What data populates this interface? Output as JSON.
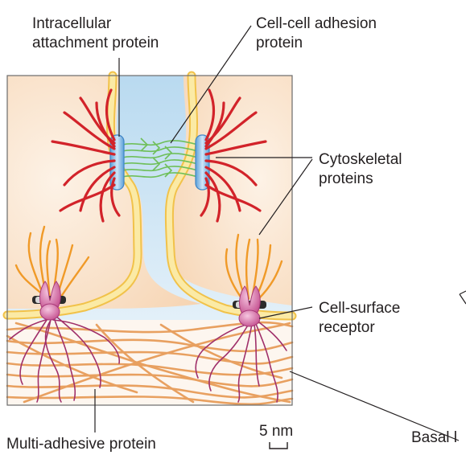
{
  "labels": {
    "intracellular_line1": "Intracellular",
    "intracellular_line2": "attachment protein",
    "adhesion_line1": "Cell-cell adhesion",
    "adhesion_line2": "protein",
    "cytoskeletal_line1": "Cytoskeletal",
    "cytoskeletal_line2": "proteins",
    "receptor_line1": "Cell-surface",
    "receptor_line2": "receptor",
    "multi_adhesive": "Multi-adhesive protein",
    "scale": "5 nm",
    "basal": "Basal l"
  },
  "colors": {
    "cell_interior": "#f9dfc4",
    "membrane": "#fbe9a0",
    "extracellular": "#cfe5f3",
    "actin": "#d2232a",
    "intermediate_filament": "#f0a030",
    "fiber": "#e8a060",
    "multi_adhesive": "#a0306a",
    "receptor": "#d76fa8",
    "plaque": "#8fc2e8",
    "adhesion": "#7cc56a"
  }
}
